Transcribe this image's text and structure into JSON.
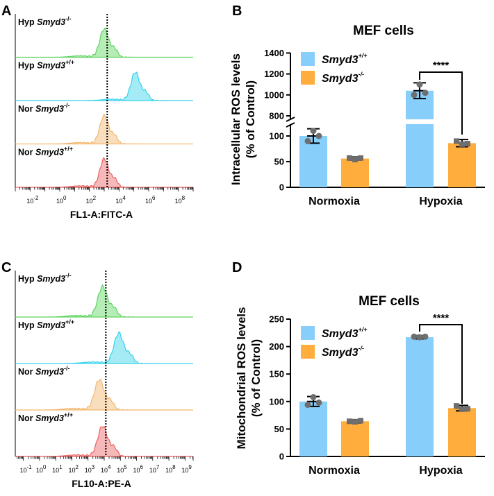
{
  "colors": {
    "smyd3_wt": "#87CEFA",
    "smyd3_ko": "#FFAD3C",
    "hyp_ko": "#5ED45E",
    "hyp_wt": "#35D3EC",
    "nor_ko": "#F2B66C",
    "nor_wt": "#EA6161",
    "dot": "#6e6e6e"
  },
  "panels": {
    "A": {
      "letter": "A"
    },
    "B": {
      "letter": "B"
    },
    "C": {
      "letter": "C"
    },
    "D": {
      "letter": "D"
    }
  },
  "chart_data": [
    {
      "panel": "A",
      "type": "area",
      "xlabel": "FL1-A:FITC-A",
      "xscale": "log",
      "x_ticks": [
        "10^-2",
        "10^0",
        "10^2",
        "10^4",
        "10^6",
        "10^8"
      ],
      "tracks": [
        {
          "label_prefix": "Hyp ",
          "label_gene": "Smyd3",
          "label_sup": "-/-",
          "color_key": "hyp_ko",
          "peak_log10": 3.0
        },
        {
          "label_prefix": "Hyp ",
          "label_gene": "Smyd3",
          "label_sup": "+/+",
          "color_key": "hyp_wt",
          "peak_log10": 5.1
        },
        {
          "label_prefix": "Nor ",
          "label_gene": "Smyd3",
          "label_sup": "-/-",
          "color_key": "nor_ko",
          "peak_log10": 3.0
        },
        {
          "label_prefix": "Nor ",
          "label_gene": "Smyd3",
          "label_sup": "+/+",
          "color_key": "nor_wt",
          "peak_log10": 3.0
        }
      ],
      "reference_line_log10": 3.2
    },
    {
      "panel": "B",
      "type": "bar",
      "title": "MEF cells",
      "ylabel_line1": "Intracellular ROS levels",
      "ylabel_line2": "(% of Control)",
      "categories": [
        "Normoxia",
        "Hypoxia"
      ],
      "y_ticks_lower": [
        0,
        50,
        100
      ],
      "y_ticks_upper": [
        800,
        1000,
        1200,
        1400
      ],
      "axis_break": [
        120,
        720
      ],
      "series": [
        {
          "name_gene": "Smyd3",
          "name_sup": "+/+",
          "color_key": "smyd3_wt",
          "values": [
            100,
            1040
          ],
          "err": [
            14,
            75
          ],
          "points": [
            [
              110,
              90,
              100
            ],
            [
              1100,
              1000,
              1020
            ]
          ]
        },
        {
          "name_gene": "Smyd3",
          "name_sup": "-/-",
          "color_key": "smyd3_ko",
          "values": [
            56,
            86
          ],
          "err": [
            3,
            7
          ],
          "points": [
            [
              54,
              57,
              57
            ],
            [
              84,
              90,
              85
            ]
          ]
        }
      ],
      "significance": "****"
    },
    {
      "panel": "C",
      "type": "area",
      "xlabel": "FL10-A:PE-A",
      "xscale": "log",
      "x_ticks": [
        "10^-1",
        "10^0",
        "10^1",
        "10^2",
        "10^3",
        "10^4",
        "10^5",
        "10^6",
        "10^7",
        "10^8",
        "10^9"
      ],
      "tracks": [
        {
          "label_prefix": "Hyp ",
          "label_gene": "Smyd3",
          "label_sup": "-/-",
          "color_key": "hyp_ko",
          "peak_log10": 3.9
        },
        {
          "label_prefix": "Hyp ",
          "label_gene": "Smyd3",
          "label_sup": "+/+",
          "color_key": "hyp_wt",
          "peak_log10": 4.9
        },
        {
          "label_prefix": "Nor ",
          "label_gene": "Smyd3",
          "label_sup": "-/-",
          "color_key": "nor_ko",
          "peak_log10": 3.7
        },
        {
          "label_prefix": "Nor ",
          "label_gene": "Smyd3",
          "label_sup": "+/+",
          "color_key": "nor_wt",
          "peak_log10": 3.9
        }
      ],
      "reference_line_log10": 4.1
    },
    {
      "panel": "D",
      "type": "bar",
      "title": "MEF cells",
      "ylabel_line1": "Mitochondrial ROS levels",
      "ylabel_line2": "(% of Control)",
      "categories": [
        "Normoxia",
        "Hypoxia"
      ],
      "y_ticks": [
        0,
        50,
        100,
        150,
        200,
        250
      ],
      "ylim": [
        0,
        250
      ],
      "series": [
        {
          "name_gene": "Smyd3",
          "name_sup": "+/+",
          "color_key": "smyd3_wt",
          "values": [
            100,
            217
          ],
          "err": [
            9,
            3
          ],
          "points": [
            [
              108,
              94,
              98
            ],
            [
              217,
              218,
              218
            ]
          ]
        },
        {
          "name_gene": "Smyd3",
          "name_sup": "-/-",
          "color_key": "smyd3_ko",
          "values": [
            64,
            88
          ],
          "err": [
            3,
            5
          ],
          "points": [
            [
              63,
              64,
              65
            ],
            [
              86,
              92,
              87
            ]
          ]
        }
      ],
      "significance": "****"
    }
  ]
}
